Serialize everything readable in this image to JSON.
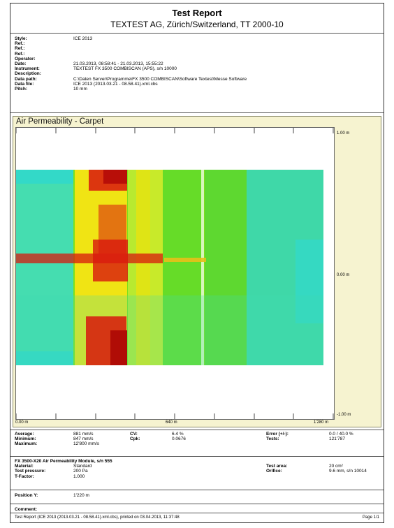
{
  "header": {
    "title": "Test Report",
    "subtitle": "TEXTEST AG, Zürich/Switzerland, TT 2000-10"
  },
  "meta": [
    {
      "k": "Style:",
      "v": "ICE 2013"
    },
    {
      "k": "Ref.:",
      "v": ""
    },
    {
      "k": "Ref.:",
      "v": ""
    },
    {
      "k": "Ref.:",
      "v": ""
    },
    {
      "k": "Operator:",
      "v": ""
    },
    {
      "k": "Date:",
      "v": "21.03.2013, 08:58:41 - 21.03.2013, 15:55:22"
    },
    {
      "k": "Instrument:",
      "v": "TEXTEST FX 3500 COMBISCAN (APS), s/n 10000"
    },
    {
      "k": "Description:",
      "v": ""
    },
    {
      "k": "Data path:",
      "v": "C:\\Daten Server\\Programme\\FX 3500 COMBISCAN\\Software Textest\\Messe Software"
    },
    {
      "k": "Data file:",
      "v": "ICE 2013 (2013.03.21 - 08.58.41).xml.cbs"
    },
    {
      "k": "Pitch:",
      "v": "10 mm"
    }
  ],
  "chart_data": {
    "type": "heatmap",
    "title": "Air Permeability - Carpet",
    "x_ticks": [
      "0.00 m",
      "640 m",
      "1'280 m"
    ],
    "y_ticks": [
      "1.00 m",
      "0.00 m",
      "-1.00 m"
    ],
    "xlim": [
      0,
      1280
    ],
    "ylim": [
      -1.0,
      1.0
    ],
    "colors": {
      "low": "#33d9c8",
      "mid": "#7ee01c",
      "high": "#f0e414",
      "peak": "#d8180e"
    }
  },
  "stats": {
    "col1": [
      {
        "k": "Average:",
        "v": "881 mm/s"
      },
      {
        "k": "Minimum:",
        "v": "847 mm/s"
      },
      {
        "k": "Maximum:",
        "v": "12'800 mm/s"
      }
    ],
    "col2": [
      {
        "k": "CV:",
        "v": "6.4 %"
      },
      {
        "k": "Cpk:",
        "v": "0.0676"
      }
    ],
    "col3": [
      {
        "k": "Error (+/-):",
        "v": "0.0 / 40.0 %"
      },
      {
        "k": "Tests:",
        "v": "121'787"
      }
    ]
  },
  "module": {
    "title": "FX 3500-X20 Air Permeability Module, s/n 555",
    "left": [
      {
        "k": "Material:",
        "v": "Standard"
      },
      {
        "k": "Test pressure:",
        "v": "200 Pa"
      },
      {
        "k": "T-Factor:",
        "v": "1.000"
      }
    ],
    "right": [
      {
        "k": "Test area:",
        "v": "20 cm²"
      },
      {
        "k": "Orifice:",
        "v": "9.6 mm, s/n 10014"
      }
    ]
  },
  "position": {
    "k": "Position Y:",
    "v": "1'220 m"
  },
  "comment": {
    "k": "Comment:"
  },
  "footer": {
    "text": "Test Report (ICE 2013 (2013.03.21 - 08.58.41).xml.cbs), printed on 03.04.2013, 11:37:48",
    "page": "Page 1/1"
  }
}
